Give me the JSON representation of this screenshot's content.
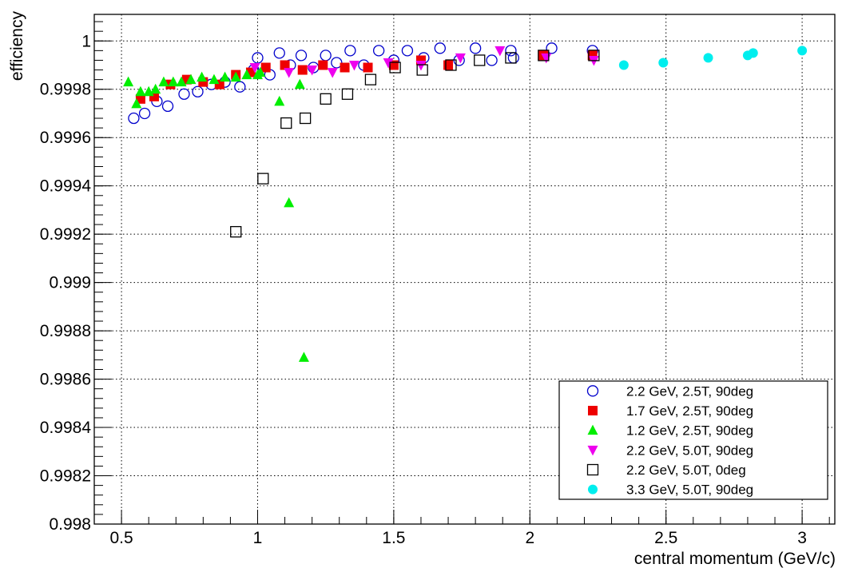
{
  "chart_data": {
    "type": "scatter",
    "title": "",
    "xlabel": "central momentum (GeV/c)",
    "ylabel": "efficiency",
    "xlim": [
      0.4,
      3.12
    ],
    "ylim": [
      0.998,
      1.00011
    ],
    "x_ticks": [
      {
        "v": 0.5,
        "label": "0.5"
      },
      {
        "v": 1,
        "label": "1"
      },
      {
        "v": 1.5,
        "label": "1.5"
      },
      {
        "v": 2,
        "label": "2"
      },
      {
        "v": 2.5,
        "label": "2.5"
      },
      {
        "v": 3,
        "label": "3"
      }
    ],
    "y_ticks": [
      {
        "v": 0.998,
        "label": "0.998"
      },
      {
        "v": 0.9982,
        "label": "0.9982"
      },
      {
        "v": 0.9984,
        "label": "0.9984"
      },
      {
        "v": 0.9986,
        "label": "0.9986"
      },
      {
        "v": 0.9988,
        "label": "0.9988"
      },
      {
        "v": 0.999,
        "label": "0.999"
      },
      {
        "v": 0.9992,
        "label": "0.9992"
      },
      {
        "v": 0.9994,
        "label": "0.9994"
      },
      {
        "v": 0.9996,
        "label": "0.9996"
      },
      {
        "v": 0.9998,
        "label": "0.9998"
      },
      {
        "v": 1.0,
        "label": "1"
      }
    ],
    "grid": true,
    "legend_position": "bottom-right",
    "series": [
      {
        "name": "2.2 GeV, 2.5T, 90deg",
        "marker": "circle-open",
        "color": "#0000cc",
        "points": [
          [
            0.545,
            0.99968
          ],
          [
            0.585,
            0.9997
          ],
          [
            0.63,
            0.99975
          ],
          [
            0.67,
            0.99973
          ],
          [
            0.73,
            0.99978
          ],
          [
            0.78,
            0.99979
          ],
          [
            0.83,
            0.99982
          ],
          [
            0.88,
            0.99983
          ],
          [
            0.935,
            0.99981
          ],
          [
            0.985,
            0.99988
          ],
          [
            1.0,
            0.99993
          ],
          [
            1.045,
            0.99986
          ],
          [
            1.08,
            0.99995
          ],
          [
            1.12,
            0.9999
          ],
          [
            1.16,
            0.99994
          ],
          [
            1.205,
            0.99989
          ],
          [
            1.25,
            0.99994
          ],
          [
            1.29,
            0.99991
          ],
          [
            1.34,
            0.99996
          ],
          [
            1.39,
            0.9999
          ],
          [
            1.445,
            0.99996
          ],
          [
            1.5,
            0.99992
          ],
          [
            1.55,
            0.99996
          ],
          [
            1.61,
            0.99993
          ],
          [
            1.67,
            0.99997
          ],
          [
            1.74,
            0.99992
          ],
          [
            1.8,
            0.99997
          ],
          [
            1.86,
            0.99992
          ],
          [
            1.93,
            0.99996
          ],
          [
            1.94,
            0.99993
          ],
          [
            2.08,
            0.99997
          ],
          [
            2.23,
            0.99996
          ]
        ]
      },
      {
        "name": "1.7 GeV, 2.5T, 90deg",
        "marker": "square-filled",
        "color": "#ee0000",
        "points": [
          [
            0.57,
            0.99976
          ],
          [
            0.62,
            0.99977
          ],
          [
            0.68,
            0.99982
          ],
          [
            0.74,
            0.99984
          ],
          [
            0.8,
            0.99983
          ],
          [
            0.86,
            0.99982
          ],
          [
            0.92,
            0.99986
          ],
          [
            0.975,
            0.99987
          ],
          [
            1.03,
            0.99989
          ],
          [
            1.1,
            0.9999
          ],
          [
            1.165,
            0.99988
          ],
          [
            1.24,
            0.9999
          ],
          [
            1.32,
            0.99989
          ],
          [
            1.405,
            0.99989
          ],
          [
            1.5,
            0.9999
          ],
          [
            1.6,
            0.99992
          ],
          [
            1.7,
            0.9999
          ],
          [
            2.05,
            0.99994
          ],
          [
            2.23,
            0.99994
          ]
        ]
      },
      {
        "name": "1.2 GeV, 2.5T, 90deg",
        "marker": "triangle-up-filled",
        "color": "#00ee00",
        "points": [
          [
            0.525,
            0.99983
          ],
          [
            0.555,
            0.99974
          ],
          [
            0.57,
            0.99979
          ],
          [
            0.6,
            0.99979
          ],
          [
            0.625,
            0.9998
          ],
          [
            0.655,
            0.99983
          ],
          [
            0.69,
            0.99983
          ],
          [
            0.72,
            0.99983
          ],
          [
            0.755,
            0.99984
          ],
          [
            0.795,
            0.99985
          ],
          [
            0.84,
            0.99984
          ],
          [
            0.88,
            0.99985
          ],
          [
            0.92,
            0.99985
          ],
          [
            0.96,
            0.99986
          ],
          [
            1.0,
            0.99986
          ],
          [
            1.01,
            0.99987
          ],
          [
            1.08,
            0.99975
          ],
          [
            1.115,
            0.99933
          ],
          [
            1.155,
            0.99982
          ],
          [
            1.17,
            0.99869
          ]
        ]
      },
      {
        "name": "2.2 GeV, 5.0T, 90deg",
        "marker": "triangle-down-filled",
        "color": "#ee00ee",
        "points": [
          [
            0.99,
            0.99989
          ],
          [
            1.115,
            0.99987
          ],
          [
            1.2,
            0.99988
          ],
          [
            1.275,
            0.99987
          ],
          [
            1.355,
            0.9999
          ],
          [
            1.48,
            0.99991
          ],
          [
            1.6,
            0.9999
          ],
          [
            1.745,
            0.99993
          ],
          [
            1.89,
            0.99996
          ],
          [
            2.06,
            0.99993
          ],
          [
            2.235,
            0.99992
          ]
        ]
      },
      {
        "name": "2.2 GeV, 5.0T, 0deg",
        "marker": "square-open",
        "color": "#000000",
        "points": [
          [
            0.92,
            0.99921
          ],
          [
            1.02,
            0.99943
          ],
          [
            1.105,
            0.99966
          ],
          [
            1.175,
            0.99968
          ],
          [
            1.25,
            0.99976
          ],
          [
            1.33,
            0.99978
          ],
          [
            1.415,
            0.99984
          ],
          [
            1.505,
            0.99989
          ],
          [
            1.605,
            0.99988
          ],
          [
            1.71,
            0.9999
          ],
          [
            1.815,
            0.99992
          ],
          [
            1.93,
            0.99993
          ],
          [
            2.05,
            0.99994
          ],
          [
            2.235,
            0.99994
          ]
        ]
      },
      {
        "name": "3.3 GeV, 5.0T, 90deg",
        "marker": "circle-filled",
        "color": "#00eeee",
        "points": [
          [
            2.345,
            0.9999
          ],
          [
            2.49,
            0.99991
          ],
          [
            2.655,
            0.99993
          ],
          [
            2.8,
            0.99994
          ],
          [
            2.82,
            0.99995
          ],
          [
            3.0,
            0.99996
          ]
        ]
      }
    ]
  }
}
